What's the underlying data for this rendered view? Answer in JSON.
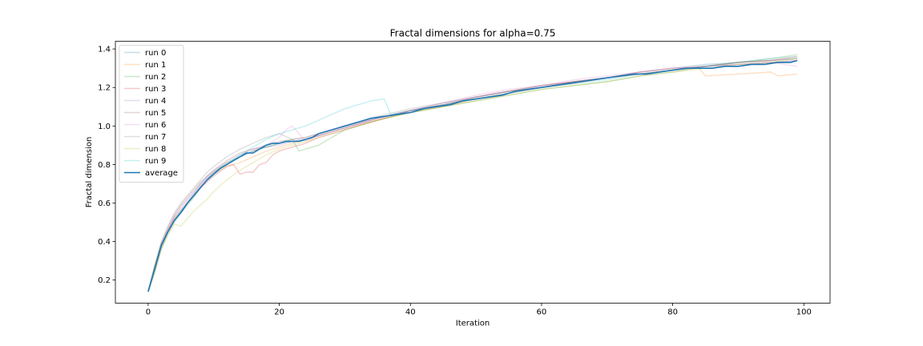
{
  "chart_data": {
    "type": "line",
    "title": "Fractal dimensions for alpha=0.75",
    "xlabel": "Iteration",
    "ylabel": "Fractal dimension",
    "xlim": [
      -5,
      104
    ],
    "ylim": [
      0.08,
      1.44
    ],
    "xticks": [
      0,
      20,
      40,
      60,
      80,
      100
    ],
    "yticks": [
      0.2,
      0.4,
      0.6,
      0.8,
      1.0,
      1.2,
      1.4
    ],
    "ytick_labels": [
      "0.2",
      "0.4",
      "0.6",
      "0.8",
      "1.0",
      "1.2",
      "1.4"
    ],
    "grid": false,
    "legend_placement": "upper-left",
    "series": [
      {
        "name": "run 0",
        "color": "#1f77b4",
        "opacity": 0.25,
        "x": [
          0,
          1,
          2,
          3,
          4,
          5,
          6,
          7,
          8,
          9,
          10,
          12,
          14,
          16,
          18,
          20,
          22,
          24,
          26,
          28,
          30,
          35,
          40,
          45,
          50,
          55,
          60,
          65,
          70,
          75,
          80,
          85,
          90,
          95,
          99
        ],
        "y": [
          0.14,
          0.25,
          0.38,
          0.45,
          0.52,
          0.56,
          0.6,
          0.65,
          0.7,
          0.73,
          0.76,
          0.8,
          0.84,
          0.87,
          0.89,
          0.91,
          0.92,
          0.93,
          0.95,
          0.97,
          0.99,
          1.04,
          1.08,
          1.11,
          1.15,
          1.18,
          1.2,
          1.23,
          1.25,
          1.28,
          1.3,
          1.32,
          1.33,
          1.34,
          1.35
        ]
      },
      {
        "name": "run 1",
        "color": "#ff7f0e",
        "opacity": 0.25,
        "x": [
          0,
          1,
          2,
          3,
          4,
          5,
          6,
          7,
          8,
          9,
          10,
          12,
          14,
          16,
          18,
          20,
          22,
          24,
          26,
          28,
          30,
          35,
          40,
          45,
          50,
          55,
          60,
          65,
          70,
          75,
          80,
          84,
          85,
          90,
          95,
          96,
          99
        ],
        "y": [
          0.14,
          0.27,
          0.39,
          0.46,
          0.52,
          0.56,
          0.6,
          0.64,
          0.69,
          0.72,
          0.75,
          0.79,
          0.81,
          0.84,
          0.87,
          0.89,
          0.91,
          0.93,
          0.95,
          0.97,
          0.99,
          1.03,
          1.07,
          1.1,
          1.14,
          1.17,
          1.2,
          1.22,
          1.25,
          1.27,
          1.29,
          1.3,
          1.26,
          1.27,
          1.28,
          1.26,
          1.27
        ]
      },
      {
        "name": "run 2",
        "color": "#2ca02c",
        "opacity": 0.25,
        "x": [
          0,
          1,
          2,
          3,
          4,
          5,
          6,
          7,
          8,
          9,
          10,
          12,
          14,
          16,
          18,
          20,
          22,
          23,
          24,
          26,
          28,
          30,
          35,
          40,
          45,
          50,
          55,
          60,
          65,
          70,
          75,
          80,
          85,
          90,
          95,
          99
        ],
        "y": [
          0.14,
          0.24,
          0.36,
          0.44,
          0.5,
          0.55,
          0.59,
          0.63,
          0.68,
          0.72,
          0.76,
          0.81,
          0.84,
          0.87,
          0.89,
          0.91,
          0.93,
          0.87,
          0.88,
          0.9,
          0.94,
          0.98,
          1.03,
          1.07,
          1.1,
          1.13,
          1.16,
          1.19,
          1.21,
          1.23,
          1.26,
          1.28,
          1.31,
          1.33,
          1.35,
          1.37
        ]
      },
      {
        "name": "run 3",
        "color": "#d62728",
        "opacity": 0.25,
        "x": [
          0,
          1,
          2,
          3,
          4,
          5,
          6,
          7,
          8,
          9,
          10,
          12,
          13,
          14,
          15,
          16,
          17,
          18,
          19,
          20,
          22,
          24,
          26,
          28,
          30,
          35,
          40,
          45,
          50,
          55,
          60,
          65,
          70,
          75,
          80,
          85,
          90,
          95,
          99
        ],
        "y": [
          0.14,
          0.25,
          0.37,
          0.45,
          0.51,
          0.55,
          0.6,
          0.64,
          0.68,
          0.71,
          0.74,
          0.79,
          0.8,
          0.75,
          0.76,
          0.76,
          0.8,
          0.81,
          0.85,
          0.87,
          0.89,
          0.91,
          0.94,
          0.96,
          0.98,
          1.03,
          1.08,
          1.11,
          1.15,
          1.18,
          1.21,
          1.23,
          1.25,
          1.28,
          1.3,
          1.31,
          1.33,
          1.34,
          1.36
        ]
      },
      {
        "name": "run 4",
        "color": "#9467bd",
        "opacity": 0.25,
        "x": [
          0,
          1,
          2,
          3,
          4,
          5,
          6,
          7,
          8,
          9,
          10,
          12,
          14,
          16,
          18,
          20,
          22,
          24,
          26,
          28,
          30,
          35,
          40,
          45,
          50,
          55,
          60,
          65,
          70,
          75,
          80,
          85,
          90,
          95,
          99
        ],
        "y": [
          0.14,
          0.26,
          0.38,
          0.46,
          0.53,
          0.58,
          0.62,
          0.66,
          0.7,
          0.74,
          0.77,
          0.81,
          0.85,
          0.88,
          0.89,
          0.9,
          0.92,
          0.93,
          0.95,
          0.97,
          0.99,
          1.04,
          1.08,
          1.12,
          1.15,
          1.18,
          1.21,
          1.23,
          1.25,
          1.27,
          1.29,
          1.31,
          1.32,
          1.33,
          1.34
        ]
      },
      {
        "name": "run 5",
        "color": "#8c564b",
        "opacity": 0.25,
        "x": [
          0,
          1,
          2,
          3,
          4,
          5,
          6,
          7,
          8,
          9,
          10,
          12,
          14,
          16,
          18,
          20,
          22,
          24,
          26,
          28,
          30,
          35,
          40,
          45,
          50,
          55,
          60,
          65,
          70,
          75,
          80,
          85,
          90,
          95,
          99
        ],
        "y": [
          0.14,
          0.27,
          0.39,
          0.47,
          0.54,
          0.59,
          0.63,
          0.67,
          0.71,
          0.74,
          0.77,
          0.82,
          0.86,
          0.88,
          0.9,
          0.92,
          0.93,
          0.94,
          0.96,
          0.98,
          1.0,
          1.04,
          1.08,
          1.11,
          1.14,
          1.17,
          1.2,
          1.23,
          1.25,
          1.27,
          1.29,
          1.31,
          1.33,
          1.34,
          1.35
        ]
      },
      {
        "name": "run 6",
        "color": "#e377c2",
        "opacity": 0.25,
        "x": [
          0,
          1,
          2,
          3,
          4,
          5,
          6,
          7,
          8,
          9,
          10,
          12,
          14,
          16,
          18,
          20,
          21,
          22,
          24,
          26,
          28,
          30,
          35,
          40,
          45,
          50,
          55,
          60,
          65,
          70,
          75,
          80,
          85,
          90,
          95,
          99
        ],
        "y": [
          0.14,
          0.26,
          0.38,
          0.46,
          0.53,
          0.57,
          0.61,
          0.65,
          0.69,
          0.73,
          0.76,
          0.8,
          0.84,
          0.87,
          0.9,
          0.94,
          0.98,
          1.0,
          0.92,
          0.95,
          0.97,
          0.99,
          1.04,
          1.08,
          1.12,
          1.16,
          1.19,
          1.21,
          1.24,
          1.26,
          1.28,
          1.3,
          1.31,
          1.32,
          1.33,
          1.31
        ]
      },
      {
        "name": "run 7",
        "color": "#7f7f7f",
        "opacity": 0.25,
        "x": [
          0,
          1,
          2,
          3,
          4,
          5,
          6,
          7,
          8,
          9,
          10,
          12,
          14,
          16,
          18,
          20,
          22,
          24,
          26,
          28,
          30,
          35,
          40,
          45,
          50,
          55,
          60,
          65,
          70,
          75,
          80,
          85,
          90,
          95,
          99
        ],
        "y": [
          0.14,
          0.28,
          0.4,
          0.48,
          0.55,
          0.6,
          0.64,
          0.68,
          0.72,
          0.76,
          0.79,
          0.84,
          0.88,
          0.91,
          0.94,
          0.96,
          0.93,
          0.94,
          0.96,
          0.98,
          1.0,
          1.05,
          1.09,
          1.12,
          1.15,
          1.18,
          1.21,
          1.23,
          1.25,
          1.27,
          1.29,
          1.31,
          1.32,
          1.33,
          1.34
        ]
      },
      {
        "name": "run 8",
        "color": "#bcbd22",
        "opacity": 0.25,
        "x": [
          0,
          1,
          2,
          3,
          4,
          5,
          6,
          7,
          8,
          9,
          10,
          12,
          14,
          16,
          18,
          20,
          22,
          24,
          26,
          28,
          30,
          35,
          40,
          45,
          50,
          55,
          60,
          65,
          70,
          75,
          80,
          85,
          90,
          95,
          99
        ],
        "y": [
          0.14,
          0.24,
          0.36,
          0.43,
          0.49,
          0.48,
          0.52,
          0.56,
          0.59,
          0.62,
          0.66,
          0.72,
          0.77,
          0.81,
          0.85,
          0.88,
          0.9,
          0.92,
          0.94,
          0.96,
          0.98,
          1.03,
          1.07,
          1.1,
          1.13,
          1.16,
          1.19,
          1.21,
          1.23,
          1.26,
          1.28,
          1.3,
          1.32,
          1.33,
          1.35
        ]
      },
      {
        "name": "run 9",
        "color": "#17becf",
        "opacity": 0.25,
        "x": [
          0,
          1,
          2,
          3,
          4,
          5,
          6,
          7,
          8,
          9,
          10,
          12,
          14,
          16,
          18,
          20,
          22,
          24,
          26,
          28,
          30,
          32,
          34,
          36,
          37,
          40,
          45,
          50,
          55,
          60,
          65,
          70,
          75,
          80,
          85,
          90,
          95,
          99
        ],
        "y": [
          0.14,
          0.25,
          0.37,
          0.45,
          0.51,
          0.56,
          0.6,
          0.64,
          0.68,
          0.72,
          0.75,
          0.8,
          0.85,
          0.89,
          0.93,
          0.96,
          0.98,
          1.0,
          1.03,
          1.06,
          1.09,
          1.11,
          1.13,
          1.14,
          1.06,
          1.08,
          1.11,
          1.14,
          1.17,
          1.2,
          1.22,
          1.24,
          1.27,
          1.29,
          1.31,
          1.33,
          1.35,
          1.36
        ]
      },
      {
        "name": "average",
        "color": "#1f77b4",
        "opacity": 1.0,
        "x": [
          0,
          1,
          2,
          3,
          4,
          5,
          6,
          7,
          8,
          9,
          10,
          11,
          12,
          13,
          14,
          15,
          16,
          17,
          18,
          19,
          20,
          21,
          22,
          23,
          24,
          25,
          26,
          27,
          28,
          30,
          32,
          34,
          36,
          38,
          40,
          42,
          44,
          46,
          48,
          50,
          52,
          54,
          56,
          58,
          60,
          62,
          64,
          66,
          68,
          70,
          72,
          74,
          76,
          78,
          80,
          82,
          84,
          86,
          88,
          90,
          92,
          94,
          96,
          98,
          99
        ],
        "y": [
          0.14,
          0.26,
          0.38,
          0.45,
          0.51,
          0.55,
          0.6,
          0.64,
          0.68,
          0.72,
          0.75,
          0.78,
          0.8,
          0.82,
          0.84,
          0.86,
          0.86,
          0.88,
          0.9,
          0.91,
          0.91,
          0.92,
          0.92,
          0.92,
          0.93,
          0.94,
          0.96,
          0.97,
          0.98,
          1.0,
          1.02,
          1.04,
          1.05,
          1.06,
          1.07,
          1.09,
          1.1,
          1.11,
          1.13,
          1.14,
          1.15,
          1.16,
          1.18,
          1.19,
          1.2,
          1.21,
          1.22,
          1.23,
          1.24,
          1.25,
          1.26,
          1.27,
          1.27,
          1.28,
          1.29,
          1.3,
          1.3,
          1.3,
          1.31,
          1.31,
          1.32,
          1.32,
          1.33,
          1.33,
          1.34
        ]
      }
    ]
  }
}
